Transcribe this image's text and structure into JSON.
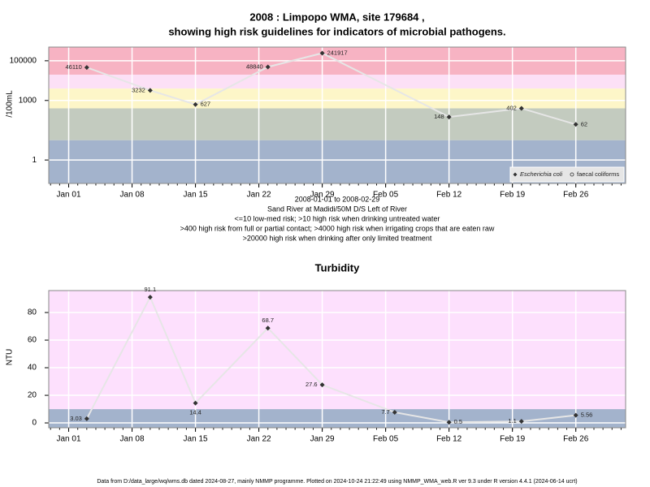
{
  "chart_data": [
    {
      "type": "line",
      "title": [
        "2008 : Limpopo WMA, site 179684 ,",
        "showing high risk guidelines for indicators of microbial pathogens."
      ],
      "ylabel": "/100mL",
      "log_scale": true,
      "grid": true,
      "xlim": [
        -1.2,
        62.5
      ],
      "xticks": [
        {
          "value": 1,
          "label": "Jan 01"
        },
        {
          "value": 8,
          "label": "Jan 08"
        },
        {
          "value": 15,
          "label": "Jan 15"
        },
        {
          "value": 22,
          "label": "Jan 22"
        },
        {
          "value": 29,
          "label": "Jan 29"
        },
        {
          "value": 36,
          "label": "Feb 05"
        },
        {
          "value": 43,
          "label": "Feb 12"
        },
        {
          "value": 50,
          "label": "Feb 19"
        },
        {
          "value": 57,
          "label": "Feb 26"
        }
      ],
      "ylim": [
        0.066,
        490000
      ],
      "yticks": [
        1,
        1000,
        100000
      ],
      "thresholds": [
        10,
        400,
        4000,
        20000
      ],
      "band_colors": [
        "#a3b3cc",
        "#c3cbbf",
        "#fdf6c8",
        "#fce0f6",
        "#f7b3c3"
      ],
      "legend": "bottom-right",
      "x": [
        3,
        10,
        15,
        23,
        29,
        43,
        51,
        57
      ],
      "series": [
        {
          "name": "Escherichia coli",
          "color": "#333333",
          "values": [
            46110,
            3232,
            627,
            48840,
            241917,
            148,
            402,
            62
          ]
        },
        {
          "name": "faecal coliforms",
          "color": "#555555",
          "values": [
            null,
            null,
            null,
            null,
            null,
            null,
            null,
            null
          ]
        }
      ],
      "notes": [
        "2008-01-01 to 2008-02-29",
        "Sand River at Madidi/50M D/S Left of River",
        "<=10 low-med risk; >10 high risk when drinking untreated water",
        ">400 high risk from full or partial contact; >4000 high risk when irrigating crops that are eaten raw",
        ">20000 high risk when drinking after only limited treatment"
      ]
    },
    {
      "type": "line",
      "title": [
        "Turbidity"
      ],
      "ylabel": "NTU",
      "log_scale": false,
      "grid": true,
      "xlim": [
        -1.2,
        62.5
      ],
      "xticks": [
        {
          "value": 1,
          "label": "Jan 01"
        },
        {
          "value": 8,
          "label": "Jan 08"
        },
        {
          "value": 15,
          "label": "Jan 15"
        },
        {
          "value": 22,
          "label": "Jan 22"
        },
        {
          "value": 29,
          "label": "Jan 29"
        },
        {
          "value": 36,
          "label": "Feb 05"
        },
        {
          "value": 43,
          "label": "Feb 12"
        },
        {
          "value": 50,
          "label": "Feb 19"
        },
        {
          "value": 57,
          "label": "Feb 26"
        }
      ],
      "ylim": [
        -3.5,
        95.9
      ],
      "yticks": [
        0,
        20,
        40,
        60,
        80
      ],
      "thresholds": [
        10
      ],
      "band_colors": [
        "#a3b3cc",
        "#fde0fd"
      ],
      "x": [
        3,
        10,
        15,
        23,
        29,
        37,
        43,
        51,
        57
      ],
      "series": [
        {
          "name": "Turbidity",
          "color": "#333333",
          "values": [
            3.03,
            91.1,
            14.4,
            68.7,
            27.6,
            7.7,
            0.5,
            1.1,
            5.56
          ]
        }
      ]
    }
  ],
  "footer": "Data from D:/data_large/wq/wms.db dated 2024-08-27, mainly NMMP programme. Plotted on 2024-10-24 21:22:49 using NMMP_WMA_web.R ver 9.3 under R version 4.4.1 (2024-06-14 ucrt)"
}
